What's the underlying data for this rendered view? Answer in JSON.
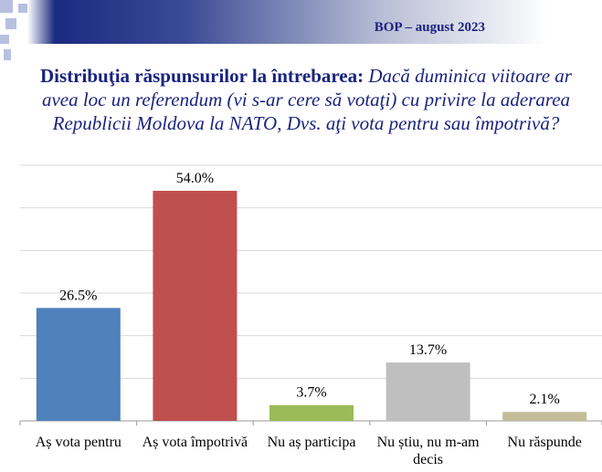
{
  "header": {
    "label": "BOP – august 2023"
  },
  "title": {
    "bold_part": "Distribuţia răspunsurilor la întrebarea:",
    "italic_part": "Dacă duminica viitoare ar avea loc un referendum (vi s-ar cere să votaţi) cu privire la aderarea Republicii Moldova la NATO, Dvs. aţi vota pentru sau împotrivă?"
  },
  "chart_data": {
    "type": "bar",
    "categories": [
      "Aș vota pentru",
      "Aș vota împotrivă",
      "Nu aș participa",
      "Nu știu, nu m-am decis",
      "Nu răspunde"
    ],
    "values": [
      26.5,
      54.0,
      3.7,
      13.7,
      2.1
    ],
    "data_labels": [
      "26.5%",
      "54.0%",
      "3.7%",
      "13.7%",
      "2.1%"
    ],
    "colors": [
      "#4f81bd",
      "#c0504d",
      "#9bbb59",
      "#bfbfbf",
      "#c4bd97"
    ],
    "ylim": [
      0,
      60
    ],
    "grid": true,
    "legend": "none"
  }
}
